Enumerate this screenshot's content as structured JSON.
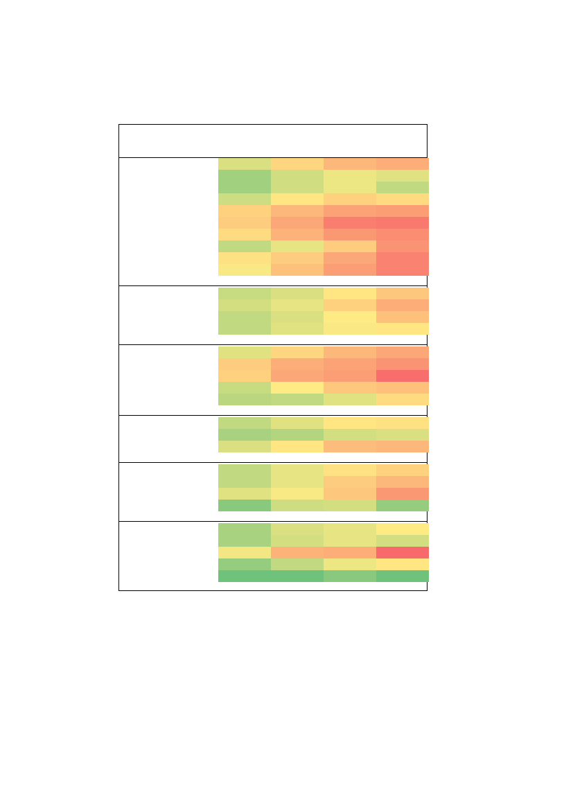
{
  "chart_data": {
    "type": "heatmap",
    "title": "",
    "xlabel": "",
    "ylabel": "",
    "colors": {
      "low": "#63be7b",
      "mid": "#ffeb84",
      "high": "#f8696b"
    },
    "value_range": [
      0,
      100
    ],
    "columns": 4,
    "groups": [
      {
        "rows": [
          [
            38,
            58,
            70,
            74
          ],
          [
            20,
            35,
            44,
            40
          ],
          [
            20,
            35,
            44,
            30
          ],
          [
            34,
            52,
            60,
            56
          ],
          [
            60,
            70,
            78,
            80
          ],
          [
            62,
            76,
            92,
            94
          ],
          [
            56,
            72,
            82,
            86
          ],
          [
            30,
            42,
            62,
            84
          ],
          [
            54,
            62,
            76,
            90
          ],
          [
            48,
            66,
            80,
            90
          ]
        ]
      },
      {
        "rows": [
          [
            32,
            38,
            52,
            64
          ],
          [
            36,
            42,
            60,
            74
          ],
          [
            30,
            38,
            50,
            66
          ],
          [
            30,
            40,
            48,
            52
          ]
        ]
      },
      {
        "rows": [
          [
            40,
            58,
            70,
            76
          ],
          [
            62,
            74,
            78,
            84
          ],
          [
            60,
            76,
            80,
            98
          ],
          [
            32,
            50,
            64,
            66
          ],
          [
            28,
            30,
            40,
            56
          ]
        ]
      },
      {
        "rows": [
          [
            30,
            40,
            52,
            54
          ],
          [
            22,
            26,
            36,
            38
          ],
          [
            38,
            52,
            68,
            70
          ]
        ]
      },
      {
        "rows": [
          [
            30,
            42,
            54,
            60
          ],
          [
            30,
            42,
            62,
            70
          ],
          [
            40,
            48,
            64,
            82
          ],
          [
            12,
            34,
            36,
            16
          ]
        ]
      },
      {
        "rows": [
          [
            22,
            38,
            42,
            50
          ],
          [
            22,
            36,
            42,
            36
          ],
          [
            46,
            72,
            74,
            100
          ],
          [
            16,
            30,
            44,
            52
          ],
          [
            4,
            4,
            12,
            4
          ]
        ]
      }
    ]
  }
}
